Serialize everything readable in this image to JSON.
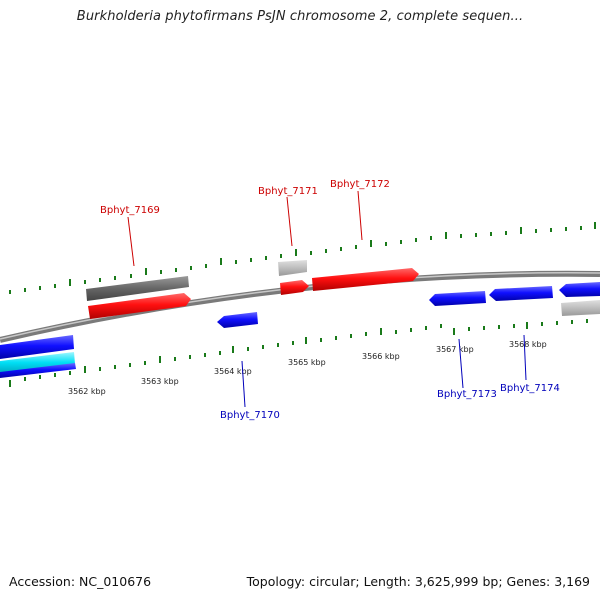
{
  "header": {
    "title": "Burkholderia phytofirmans PsJN chromosome 2, complete sequen..."
  },
  "footer": {
    "accession": "Accession: NC_010676",
    "summary": "Topology: circular; Length: 3,625,999 bp; Genes: 3,169"
  },
  "scale": {
    "unit": "kbp",
    "ticks": [
      {
        "label": "3562 kbp"
      },
      {
        "label": "3563 kbp"
      },
      {
        "label": "3564 kbp"
      },
      {
        "label": "3565 kbp"
      },
      {
        "label": "3566 kbp"
      },
      {
        "label": "3567 kbp"
      },
      {
        "label": "3568 kbp"
      }
    ]
  },
  "genes": {
    "forward": [
      {
        "label": "Bphyt_7169"
      },
      {
        "label": "Bphyt_7171"
      },
      {
        "label": "Bphyt_7172"
      }
    ],
    "reverse": [
      {
        "label": "Bphyt_7170"
      },
      {
        "label": "Bphyt_7173"
      },
      {
        "label": "Bphyt_7174"
      }
    ]
  },
  "colors": {
    "forward_gene": "#ee0000",
    "reverse_gene": "#0000ee",
    "forward_label": "#cc0000",
    "reverse_label": "#0000bb",
    "tick": "#1a7a1a",
    "backbone": "#8a8a8a",
    "feature_dark": "#666666",
    "feature_light": "#bbbbbb",
    "feature_cyan": "#00d5ee"
  }
}
